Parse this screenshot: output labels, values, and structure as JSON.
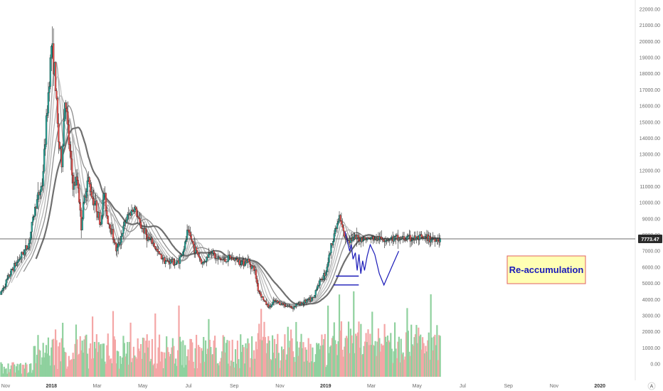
{
  "chart_data": {
    "type": "candlestick",
    "y_axis": {
      "ticks": [
        "22000.00",
        "21000.00",
        "20000.00",
        "19000.00",
        "18000.00",
        "17000.00",
        "16000.00",
        "15000.00",
        "14000.00",
        "13000.00",
        "12000.00",
        "11000.00",
        "10000.00",
        "9000.00",
        "8000.00",
        "7000.00",
        "6000.00",
        "5000.00",
        "4000.00",
        "3000.00",
        "2000.00",
        "1000.00",
        "0.00"
      ],
      "current_price_label": "7773.47",
      "current_price": 7773.47,
      "price_range": [
        -200,
        22300
      ]
    },
    "x_axis": {
      "ticks": [
        {
          "label": "Nov",
          "month": 0,
          "bold": false
        },
        {
          "label": "2018",
          "month": 2,
          "bold": true
        },
        {
          "label": "Mar",
          "month": 4,
          "bold": false
        },
        {
          "label": "May",
          "month": 6,
          "bold": false
        },
        {
          "label": "Jul",
          "month": 8,
          "bold": false
        },
        {
          "label": "Sep",
          "month": 10,
          "bold": false
        },
        {
          "label": "Nov",
          "month": 12,
          "bold": false
        },
        {
          "label": "2019",
          "month": 14,
          "bold": true
        },
        {
          "label": "Mar",
          "month": 16,
          "bold": false
        },
        {
          "label": "May",
          "month": 18,
          "bold": false
        },
        {
          "label": "Jul",
          "month": 20,
          "bold": false
        },
        {
          "label": "Sep",
          "month": 22,
          "bold": false
        },
        {
          "label": "Nov",
          "month": 24,
          "bold": false
        },
        {
          "label": "2020",
          "month": 26,
          "bold": true
        }
      ],
      "month_range": [
        -0.25,
        27.55
      ],
      "data_end_month": 19.05
    },
    "price_path": [
      [
        -0.25,
        4300
      ],
      [
        0.3,
        5900
      ],
      [
        1.0,
        7400
      ],
      [
        1.3,
        9800
      ],
      [
        1.6,
        11200
      ],
      [
        1.85,
        16500
      ],
      [
        2.0,
        19800
      ],
      [
        2.15,
        18000
      ],
      [
        2.3,
        14000
      ],
      [
        2.45,
        12500
      ],
      [
        2.6,
        16800
      ],
      [
        2.75,
        13900
      ],
      [
        2.95,
        11000
      ],
      [
        3.15,
        11500
      ],
      [
        3.3,
        8500
      ],
      [
        3.45,
        10400
      ],
      [
        3.6,
        11500
      ],
      [
        3.8,
        10300
      ],
      [
        4.0,
        9600
      ],
      [
        4.15,
        8600
      ],
      [
        4.3,
        10700
      ],
      [
        4.45,
        9000
      ],
      [
        4.65,
        8200
      ],
      [
        4.85,
        7000
      ],
      [
        5.05,
        7900
      ],
      [
        5.25,
        8900
      ],
      [
        5.45,
        9400
      ],
      [
        5.65,
        9700
      ],
      [
        5.85,
        8700
      ],
      [
        6.05,
        8300
      ],
      [
        6.25,
        7700
      ],
      [
        6.45,
        7500
      ],
      [
        6.65,
        6900
      ],
      [
        6.85,
        6600
      ],
      [
        7.05,
        6300
      ],
      [
        7.25,
        6400
      ],
      [
        7.45,
        6200
      ],
      [
        7.65,
        6600
      ],
      [
        7.85,
        7400
      ],
      [
        7.95,
        8200
      ],
      [
        8.1,
        7800
      ],
      [
        8.25,
        7200
      ],
      [
        8.45,
        6700
      ],
      [
        8.6,
        6200
      ],
      [
        8.8,
        6600
      ],
      [
        9.0,
        7100
      ],
      [
        9.2,
        6500
      ],
      [
        9.4,
        6500
      ],
      [
        9.6,
        6400
      ],
      [
        9.8,
        6600
      ],
      [
        10.0,
        6500
      ],
      [
        10.2,
        6400
      ],
      [
        10.4,
        6300
      ],
      [
        10.6,
        6400
      ],
      [
        10.9,
        5800
      ],
      [
        11.05,
        4600
      ],
      [
        11.2,
        4200
      ],
      [
        11.35,
        3800
      ],
      [
        11.55,
        3500
      ],
      [
        11.75,
        3900
      ],
      [
        11.95,
        3800
      ],
      [
        12.15,
        3700
      ],
      [
        12.35,
        3600
      ],
      [
        12.55,
        3500
      ],
      [
        12.75,
        3700
      ],
      [
        12.95,
        3800
      ],
      [
        13.15,
        3900
      ],
      [
        13.35,
        4000
      ],
      [
        13.5,
        4100
      ],
      [
        13.6,
        4800
      ],
      [
        13.8,
        5200
      ],
      [
        14.0,
        5700
      ],
      [
        14.2,
        7000
      ],
      [
        14.35,
        8000
      ],
      [
        14.5,
        8600
      ],
      [
        14.6,
        9100
      ],
      [
        14.75,
        8300
      ],
      [
        14.85,
        7773
      ]
    ],
    "moving_average_note": "grey moving-average ribbon",
    "volume_range": [
      0,
      4000
    ],
    "volume_bars_note": "green/red volume bars at bottom",
    "projection": {
      "line_color": "#1a1ab8",
      "path_prices": [
        [
          14.85,
          8200
        ],
        [
          14.95,
          7600
        ],
        [
          15.05,
          7000
        ],
        [
          15.12,
          7400
        ],
        [
          15.2,
          6500
        ],
        [
          15.3,
          6900
        ],
        [
          15.38,
          5800
        ],
        [
          15.46,
          6800
        ],
        [
          15.54,
          5600
        ],
        [
          15.62,
          6400
        ],
        [
          15.7,
          5800
        ],
        [
          15.82,
          6700
        ],
        [
          15.95,
          7400
        ],
        [
          16.15,
          6800
        ],
        [
          16.35,
          5600
        ],
        [
          16.55,
          4900
        ],
        [
          16.95,
          6200
        ],
        [
          17.2,
          7000
        ]
      ],
      "support_line_upper": {
        "from_month": 14.45,
        "to_month": 15.45,
        "price": 5450
      },
      "support_line_lower": {
        "from_month": 14.35,
        "to_month": 15.45,
        "price": 4900
      }
    },
    "annotation": {
      "text": "Re-accumulation",
      "fill": "#ffffb4",
      "border": "#e06060",
      "text_color": "#1a1ab8"
    },
    "colors": {
      "up": "#26a69a",
      "down": "#ef5350",
      "volume_up": "#8fd19e",
      "volume_down": "#f4a6a6",
      "price_tag_bg": "#2b2b2b",
      "ma": [
        "#a8a8a8",
        "#c4c4c4",
        "#b6b6b6",
        "#8e8e8e",
        "#6f6f6f"
      ]
    }
  },
  "controls": {
    "auto_label": "A"
  }
}
